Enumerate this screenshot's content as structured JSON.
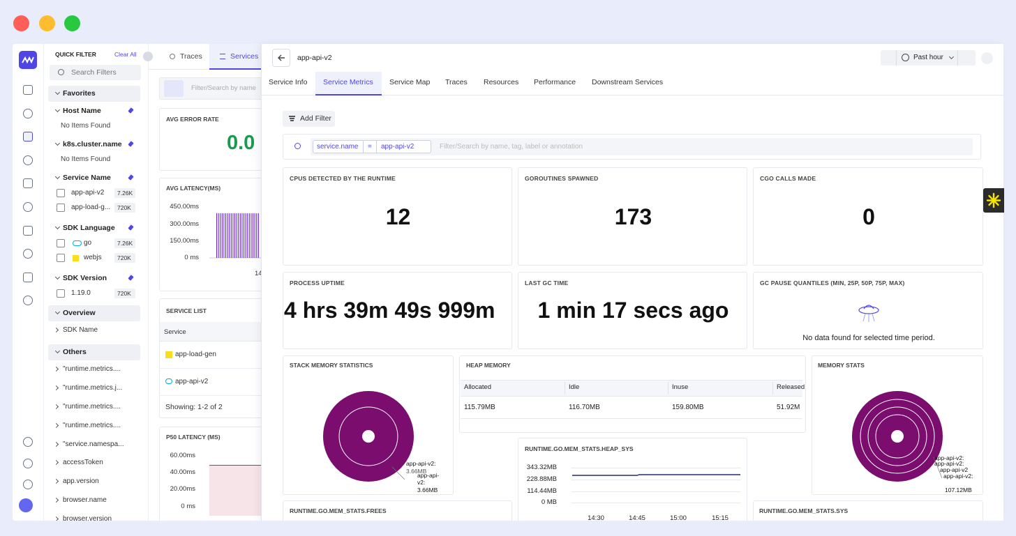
{
  "window_tabs": [
    "Traces",
    "Services"
  ],
  "quick_filter": {
    "title": "QUICK FILTER",
    "clear": "Clear All",
    "search": "Search Filters",
    "favorites": "Favorites",
    "filters": [
      {
        "name": "Host Name",
        "empty": "No Items Found"
      },
      {
        "name": "k8s.cluster.name",
        "empty": "No Items Found"
      },
      {
        "name": "Service Name",
        "items": [
          {
            "label": "app-api-v2",
            "count": "7.26K"
          },
          {
            "label": "app-load-g...",
            "count": "720K"
          }
        ]
      },
      {
        "name": "SDK Language",
        "items": [
          {
            "label": "go",
            "count": "7.26K"
          },
          {
            "label": "webjs",
            "count": "720K"
          }
        ]
      },
      {
        "name": "SDK Version",
        "items": [
          {
            "label": "1.19.0",
            "count": "720K"
          }
        ]
      }
    ],
    "sections": [
      {
        "title": "Overview",
        "items": [
          "SDK Name"
        ]
      },
      {
        "title": "Others",
        "items": [
          "\"runtime.metrics....",
          "\"runtime.metrics.j...",
          "\"runtime.metrics....",
          "\"runtime.metrics....",
          "\"service.namespa...",
          "accessToken",
          "app.version",
          "browser.name",
          "browser.version"
        ]
      }
    ]
  },
  "services_page": {
    "search": "Filter/Search by name",
    "error_rate": {
      "title": "AVG ERROR RATE",
      "value": "0.0"
    },
    "latency": {
      "title": "AVG LATENCY(MS)",
      "yticks": [
        "450.00ms",
        "300.00ms",
        "150.00ms",
        "0 ms"
      ],
      "xticks": [
        "14"
      ]
    },
    "service_list": {
      "title": "SERVICE LIST",
      "column": "Service",
      "rows": [
        "app-load-gen",
        "app-api-v2"
      ],
      "footer": "Showing: 1-2 of 2"
    },
    "p50": {
      "title": "P50 LATENCY (MS)",
      "yticks": [
        "60.00ms",
        "40.00ms",
        "20.00ms",
        "0 ms"
      ]
    }
  },
  "detail": {
    "title": "app-api-v2",
    "time_range": "Past hour",
    "tabs": [
      "Service Info",
      "Service Metrics",
      "Service Map",
      "Traces",
      "Resources",
      "Performance",
      "Downstream Services"
    ],
    "active_tab": 1,
    "add_filter": "Add Filter",
    "filter": {
      "key": "service.name",
      "op": "=",
      "value": "app-api-v2",
      "placeholder": "Filter/Search by name, tag, label or annotation"
    },
    "stats": [
      {
        "title": "CPUS DETECTED BY THE RUNTIME",
        "value": 12
      },
      {
        "title": "GOROUTINES SPAWNED",
        "value": 173
      },
      {
        "title": "CGO CALLS MADE",
        "value": 0
      },
      {
        "title": "PROCESS UPTIME",
        "value": "4 hrs 39m 49s 999m"
      },
      {
        "title": "LAST GC TIME",
        "value": "1 min 17 secs ago"
      },
      {
        "title": "GC PAUSE QUANTILES (MIN, 25P, 50P, 75P, MAX)",
        "empty": "No data found for selected time period."
      }
    ],
    "stack_memory": {
      "title": "STACK MEMORY STATISTICS",
      "labels": [
        "app-api-v2:",
        "3.66MB",
        "app-api-",
        "v2:",
        "3.66MB"
      ]
    },
    "heap_memory": {
      "title": "HEAP MEMORY",
      "columns": [
        "Allocated",
        "Idle",
        "Inuse",
        "Released"
      ],
      "row": [
        "115.79MB",
        "116.70MB",
        "159.80MB",
        "51.92M"
      ]
    },
    "memory_stats": {
      "title": "MEMORY STATS",
      "labels": [
        "app-api-v2:",
        "app-api-v2:",
        "app-api-v2",
        "app-api-v2:",
        "107.12MB"
      ]
    },
    "heap_sys": {
      "title": "RUNTIME.GO.MEM_STATS.HEAP_SYS",
      "yticks": [
        "343.32MB",
        "228.88MB",
        "114.44MB",
        "0 MB"
      ],
      "xticks": [
        "14:30",
        "14:45",
        "15:00",
        "15:15"
      ]
    },
    "frees": {
      "title": "RUNTIME.GO.MEM_STATS.FREES"
    },
    "sys": {
      "title": "RUNTIME.GO.MEM_STATS.SYS"
    }
  }
}
